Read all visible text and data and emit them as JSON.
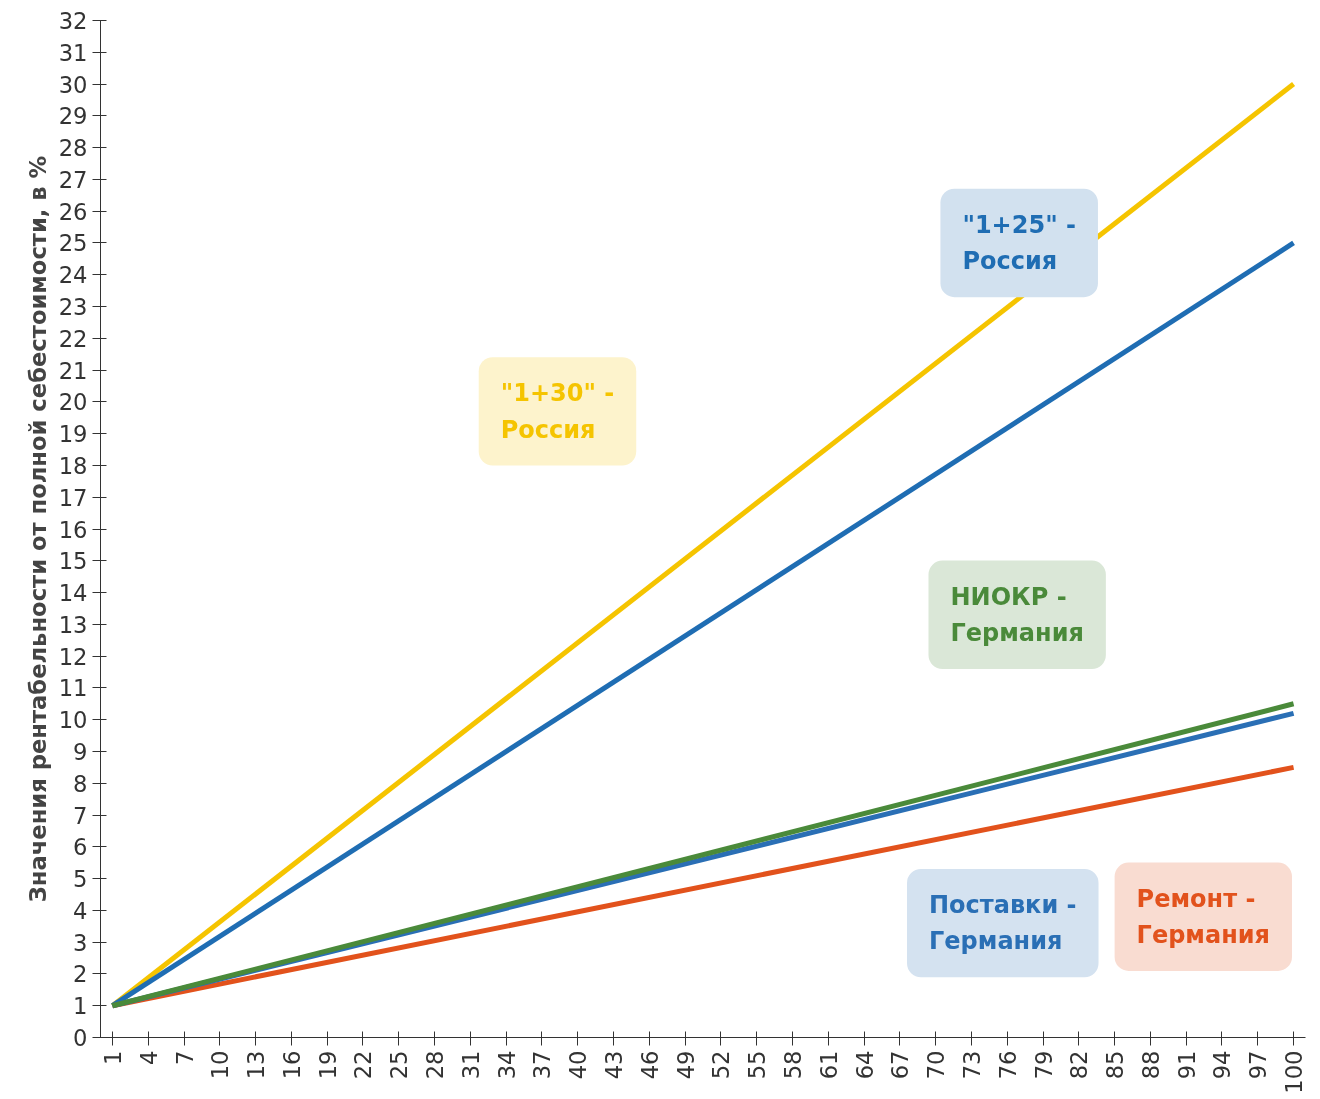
{
  "chart_data": {
    "type": "line",
    "ylabel": "Значения рентабельности от полной себестоимости, в %",
    "xlim": [
      0,
      101
    ],
    "xticks": [
      1,
      4,
      7,
      10,
      13,
      16,
      19,
      22,
      25,
      28,
      31,
      34,
      37,
      40,
      43,
      46,
      49,
      52,
      55,
      58,
      61,
      64,
      67,
      70,
      73,
      76,
      79,
      82,
      85,
      88,
      91,
      94,
      97,
      100
    ],
    "ylim": [
      0,
      32
    ],
    "yticks": [
      0,
      1,
      2,
      3,
      4,
      5,
      6,
      7,
      8,
      9,
      10,
      11,
      12,
      13,
      14,
      15,
      16,
      17,
      18,
      19,
      20,
      21,
      22,
      23,
      24,
      25,
      26,
      27,
      28,
      29,
      30,
      31,
      32
    ],
    "grid": false,
    "marker": "none",
    "line_style": "solid",
    "x": [
      1,
      100
    ],
    "series": [
      {
        "name": "\"1+30\" -\nРоссия",
        "color": "#f5c400",
        "values": [
          1,
          30
        ]
      },
      {
        "name": "\"1+25\" -\nРоссия",
        "color": "#1f6db3",
        "values": [
          1,
          25
        ]
      },
      {
        "name": "Ремонт -\nГермания",
        "color": "#e2521c",
        "values": [
          1,
          8.5
        ]
      },
      {
        "name": "Поставки -\nГермания",
        "color": "#2a6fb5",
        "values": [
          1,
          10.2
        ]
      },
      {
        "name": "НИОКР -\nГермания",
        "color": "#4a8a3a",
        "values": [
          1,
          10.5
        ]
      }
    ]
  }
}
